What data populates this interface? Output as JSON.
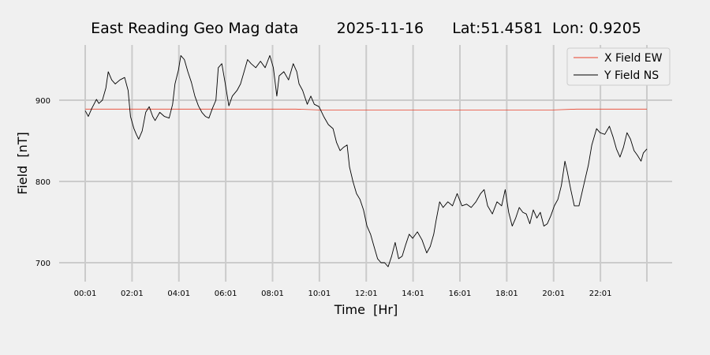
{
  "chart_data": {
    "type": "line",
    "title": "East Reading Geo Mag data        2025-11-16      Lat:51.4581  Lon: 0.9205",
    "xlabel": "Time  [Hr]",
    "ylabel": "Field  [nT]",
    "x_unit": "hour",
    "xlim": [
      0.017,
      24.0
    ],
    "ylim": [
      675,
      970
    ],
    "x_ticks": [
      {
        "value": 0.017,
        "label": "00:01"
      },
      {
        "value": 2.017,
        "label": "02:01"
      },
      {
        "value": 4.017,
        "label": "04:01"
      },
      {
        "value": 6.017,
        "label": "06:01"
      },
      {
        "value": 8.017,
        "label": "08:01"
      },
      {
        "value": 10.017,
        "label": "10:01"
      },
      {
        "value": 12.017,
        "label": "12:01"
      },
      {
        "value": 14.017,
        "label": "14:01"
      },
      {
        "value": 16.017,
        "label": "16:01"
      },
      {
        "value": 18.017,
        "label": "18:01"
      },
      {
        "value": 20.017,
        "label": "20:01"
      },
      {
        "value": 22.017,
        "label": "22:01"
      },
      {
        "value": 24.0,
        "label": ""
      }
    ],
    "y_ticks": [
      {
        "value": 700,
        "label": "700"
      },
      {
        "value": 800,
        "label": "800"
      },
      {
        "value": 900,
        "label": "900"
      }
    ],
    "grid": true,
    "legend": "top-right",
    "series": [
      {
        "name": "X Field EW",
        "color": "#e8402a",
        "points": [
          [
            0.02,
            889
          ],
          [
            1.0,
            889
          ],
          [
            2.0,
            889
          ],
          [
            3.0,
            889
          ],
          [
            4.0,
            889
          ],
          [
            5.0,
            889
          ],
          [
            6.0,
            889
          ],
          [
            7.0,
            889
          ],
          [
            8.0,
            889
          ],
          [
            9.0,
            889
          ],
          [
            10.0,
            888
          ],
          [
            11.0,
            888
          ],
          [
            12.0,
            888
          ],
          [
            13.0,
            888
          ],
          [
            14.0,
            888
          ],
          [
            15.0,
            888
          ],
          [
            16.0,
            888
          ],
          [
            17.0,
            888
          ],
          [
            18.0,
            888
          ],
          [
            19.0,
            888
          ],
          [
            20.0,
            888
          ],
          [
            21.0,
            889
          ],
          [
            22.0,
            889
          ],
          [
            23.0,
            889
          ],
          [
            24.0,
            889
          ]
        ]
      },
      {
        "name": "Y Field NS",
        "color": "#000000",
        "points": [
          [
            0.02,
            887
          ],
          [
            0.15,
            880
          ],
          [
            0.3,
            890
          ],
          [
            0.5,
            901
          ],
          [
            0.6,
            896
          ],
          [
            0.75,
            900
          ],
          [
            0.9,
            915
          ],
          [
            1.0,
            935
          ],
          [
            1.15,
            925
          ],
          [
            1.3,
            920
          ],
          [
            1.5,
            925
          ],
          [
            1.7,
            928
          ],
          [
            1.85,
            912
          ],
          [
            1.95,
            880
          ],
          [
            2.1,
            865
          ],
          [
            2.2,
            858
          ],
          [
            2.3,
            852
          ],
          [
            2.45,
            862
          ],
          [
            2.6,
            885
          ],
          [
            2.75,
            892
          ],
          [
            2.9,
            880
          ],
          [
            3.0,
            875
          ],
          [
            3.2,
            885
          ],
          [
            3.4,
            880
          ],
          [
            3.6,
            878
          ],
          [
            3.75,
            895
          ],
          [
            3.85,
            920
          ],
          [
            4.0,
            937
          ],
          [
            4.1,
            955
          ],
          [
            4.25,
            950
          ],
          [
            4.4,
            935
          ],
          [
            4.55,
            922
          ],
          [
            4.7,
            905
          ],
          [
            4.85,
            893
          ],
          [
            5.0,
            885
          ],
          [
            5.15,
            880
          ],
          [
            5.3,
            878
          ],
          [
            5.45,
            890
          ],
          [
            5.6,
            900
          ],
          [
            5.7,
            940
          ],
          [
            5.85,
            945
          ],
          [
            6.0,
            920
          ],
          [
            6.15,
            893
          ],
          [
            6.3,
            905
          ],
          [
            6.5,
            912
          ],
          [
            6.65,
            920
          ],
          [
            6.8,
            935
          ],
          [
            6.95,
            950
          ],
          [
            7.1,
            945
          ],
          [
            7.3,
            940
          ],
          [
            7.5,
            948
          ],
          [
            7.7,
            940
          ],
          [
            7.9,
            955
          ],
          [
            8.05,
            940
          ],
          [
            8.2,
            905
          ],
          [
            8.3,
            930
          ],
          [
            8.5,
            935
          ],
          [
            8.7,
            925
          ],
          [
            8.9,
            945
          ],
          [
            9.05,
            935
          ],
          [
            9.15,
            920
          ],
          [
            9.3,
            912
          ],
          [
            9.5,
            895
          ],
          [
            9.65,
            905
          ],
          [
            9.8,
            895
          ],
          [
            10.0,
            892
          ],
          [
            10.2,
            880
          ],
          [
            10.4,
            870
          ],
          [
            10.6,
            865
          ],
          [
            10.75,
            848
          ],
          [
            10.9,
            838
          ],
          [
            11.05,
            842
          ],
          [
            11.2,
            845
          ],
          [
            11.3,
            818
          ],
          [
            11.45,
            800
          ],
          [
            11.6,
            785
          ],
          [
            11.75,
            778
          ],
          [
            11.9,
            765
          ],
          [
            12.05,
            745
          ],
          [
            12.2,
            735
          ],
          [
            12.35,
            720
          ],
          [
            12.5,
            705
          ],
          [
            12.65,
            700
          ],
          [
            12.8,
            700
          ],
          [
            12.95,
            695
          ],
          [
            13.1,
            708
          ],
          [
            13.25,
            725
          ],
          [
            13.4,
            705
          ],
          [
            13.55,
            708
          ],
          [
            13.7,
            722
          ],
          [
            13.85,
            735
          ],
          [
            14.0,
            730
          ],
          [
            14.2,
            738
          ],
          [
            14.4,
            728
          ],
          [
            14.6,
            712
          ],
          [
            14.75,
            720
          ],
          [
            14.9,
            735
          ],
          [
            15.0,
            752
          ],
          [
            15.15,
            775
          ],
          [
            15.3,
            768
          ],
          [
            15.5,
            775
          ],
          [
            15.7,
            770
          ],
          [
            15.9,
            785
          ],
          [
            16.1,
            770
          ],
          [
            16.3,
            772
          ],
          [
            16.5,
            768
          ],
          [
            16.7,
            775
          ],
          [
            16.9,
            785
          ],
          [
            17.05,
            790
          ],
          [
            17.2,
            770
          ],
          [
            17.4,
            760
          ],
          [
            17.6,
            775
          ],
          [
            17.8,
            770
          ],
          [
            17.95,
            790
          ],
          [
            18.1,
            762
          ],
          [
            18.25,
            745
          ],
          [
            18.4,
            755
          ],
          [
            18.55,
            768
          ],
          [
            18.7,
            762
          ],
          [
            18.85,
            760
          ],
          [
            19.0,
            748
          ],
          [
            19.15,
            765
          ],
          [
            19.3,
            755
          ],
          [
            19.45,
            762
          ],
          [
            19.6,
            745
          ],
          [
            19.75,
            748
          ],
          [
            19.9,
            758
          ],
          [
            20.05,
            770
          ],
          [
            20.2,
            778
          ],
          [
            20.35,
            795
          ],
          [
            20.5,
            825
          ],
          [
            20.6,
            812
          ],
          [
            20.75,
            790
          ],
          [
            20.9,
            770
          ],
          [
            21.1,
            770
          ],
          [
            21.3,
            795
          ],
          [
            21.5,
            820
          ],
          [
            21.65,
            845
          ],
          [
            21.85,
            865
          ],
          [
            22.0,
            860
          ],
          [
            22.2,
            858
          ],
          [
            22.4,
            868
          ],
          [
            22.55,
            855
          ],
          [
            22.7,
            840
          ],
          [
            22.85,
            830
          ],
          [
            23.0,
            842
          ],
          [
            23.15,
            860
          ],
          [
            23.3,
            852
          ],
          [
            23.45,
            838
          ],
          [
            23.6,
            832
          ],
          [
            23.75,
            825
          ],
          [
            23.85,
            835
          ],
          [
            24.0,
            840
          ]
        ]
      }
    ]
  }
}
